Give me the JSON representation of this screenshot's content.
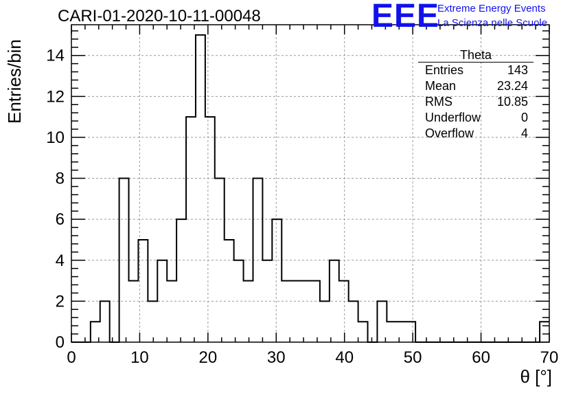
{
  "title": "CARI-01-2020-10-11-00048",
  "logo": {
    "mark": "EEE",
    "line1": "Extreme Energy Events",
    "line2": "La Scienza nelle Scuole"
  },
  "stats": {
    "name": "Theta",
    "rows": [
      {
        "label": "Entries",
        "value": "143"
      },
      {
        "label": "Mean",
        "value": "23.24"
      },
      {
        "label": "RMS",
        "value": "10.85"
      },
      {
        "label": "Underflow",
        "value": "0"
      },
      {
        "label": "Overflow",
        "value": "4"
      }
    ]
  },
  "chart_data": {
    "type": "bar",
    "style": "step-histogram",
    "title": "CARI-01-2020-10-11-00048",
    "xlabel": "θ [°]",
    "ylabel": "Entries/bin",
    "xlim": [
      0,
      70
    ],
    "ylim": [
      0,
      15.5
    ],
    "grid": true,
    "bin_width": 1.4,
    "bin_starts": [
      0,
      1.4,
      2.8,
      4.2,
      5.6,
      7.0,
      8.4,
      9.8,
      11.2,
      12.6,
      14.0,
      15.4,
      16.8,
      18.2,
      19.6,
      21.0,
      22.4,
      23.8,
      25.2,
      26.6,
      28.0,
      29.4,
      30.8,
      32.2,
      33.6,
      35.0,
      36.4,
      37.8,
      39.2,
      40.6,
      42.0,
      43.4,
      44.8,
      46.2,
      47.6,
      49.0,
      50.4,
      51.8,
      53.2,
      54.6,
      56.0,
      57.4,
      58.8,
      60.2,
      61.6,
      63.0,
      64.4,
      65.8,
      67.2,
      68.6
    ],
    "values": [
      0,
      0,
      1,
      2,
      0,
      8,
      3,
      5,
      2,
      4,
      3,
      6,
      11,
      15,
      11,
      8,
      5,
      4,
      3,
      8,
      4,
      6,
      3,
      3,
      3,
      3,
      2,
      4,
      3,
      2,
      1,
      0,
      2,
      1,
      1,
      1,
      0,
      0,
      0,
      0,
      0,
      0,
      0,
      0,
      0,
      0,
      0,
      0,
      0,
      1
    ],
    "x_ticks": [
      0,
      10,
      20,
      30,
      40,
      50,
      60,
      70
    ],
    "y_ticks": [
      0,
      2,
      4,
      6,
      8,
      10,
      12,
      14
    ],
    "legend": "top-right"
  }
}
